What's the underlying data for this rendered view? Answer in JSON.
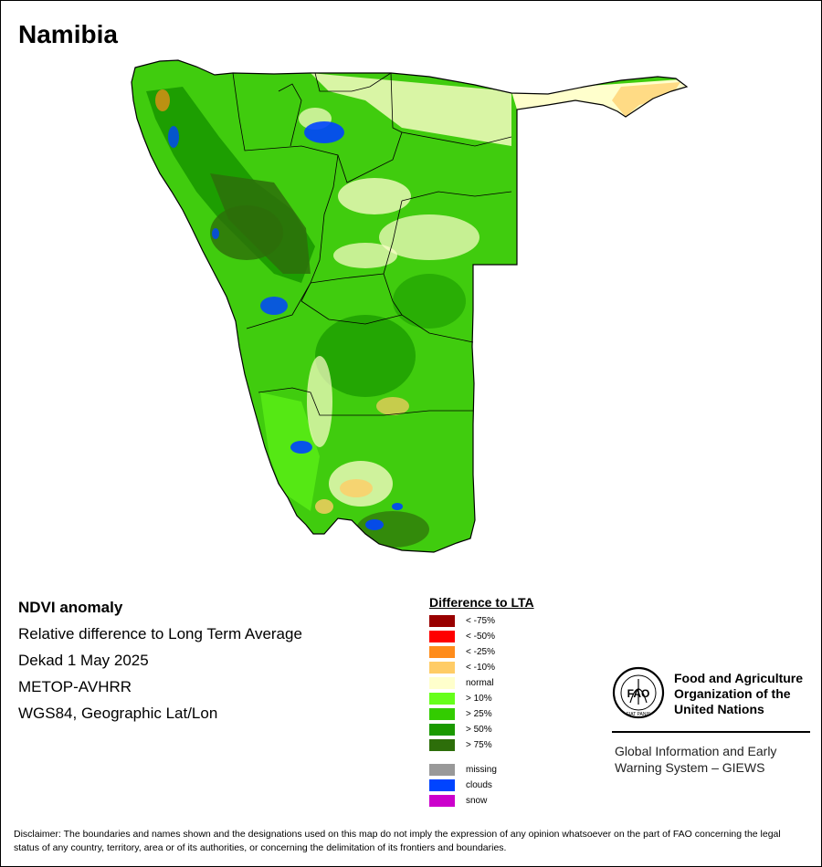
{
  "map": {
    "title": "Namibia"
  },
  "info": {
    "heading": "NDVI anomaly",
    "lines": [
      "Relative difference to Long Term Average",
      "Dekad 1 May 2025",
      "METOP-AVHRR",
      "WGS84, Geographic Lat/Lon"
    ]
  },
  "legend": {
    "title": "Difference to LTA",
    "items": [
      {
        "label": "< -75%",
        "color": "#990000"
      },
      {
        "label": "< -50%",
        "color": "#ff0000"
      },
      {
        "label": "< -25%",
        "color": "#ff8c1a"
      },
      {
        "label": "< -10%",
        "color": "#ffcc66"
      },
      {
        "label": "normal",
        "color": "#ffffcc"
      },
      {
        "label": "> 10%",
        "color": "#66ff1a"
      },
      {
        "label": "> 25%",
        "color": "#33cc00"
      },
      {
        "label": "> 50%",
        "color": "#1a9900"
      },
      {
        "label": "> 75%",
        "color": "#2d6e0a"
      },
      {
        "label": "missing",
        "color": "#999999"
      },
      {
        "label": "clouds",
        "color": "#0044ff"
      },
      {
        "label": "snow",
        "color": "#cc00cc"
      }
    ]
  },
  "fao": {
    "logo_text": "FAO",
    "logo_motto": "FIAT PANIS",
    "name": "Food and Agriculture Organization of the United Nations",
    "system": "Global Information and Early Warning System – GIEWS"
  },
  "disclaimer": "Disclaimer: The boundaries and names shown and the designations used on this map do not imply the expression of any opinion whatsoever on the part of FAO concerning the legal status of any country, territory, area or of its authorities, or concerning the delimitation of its frontiers and boundaries."
}
